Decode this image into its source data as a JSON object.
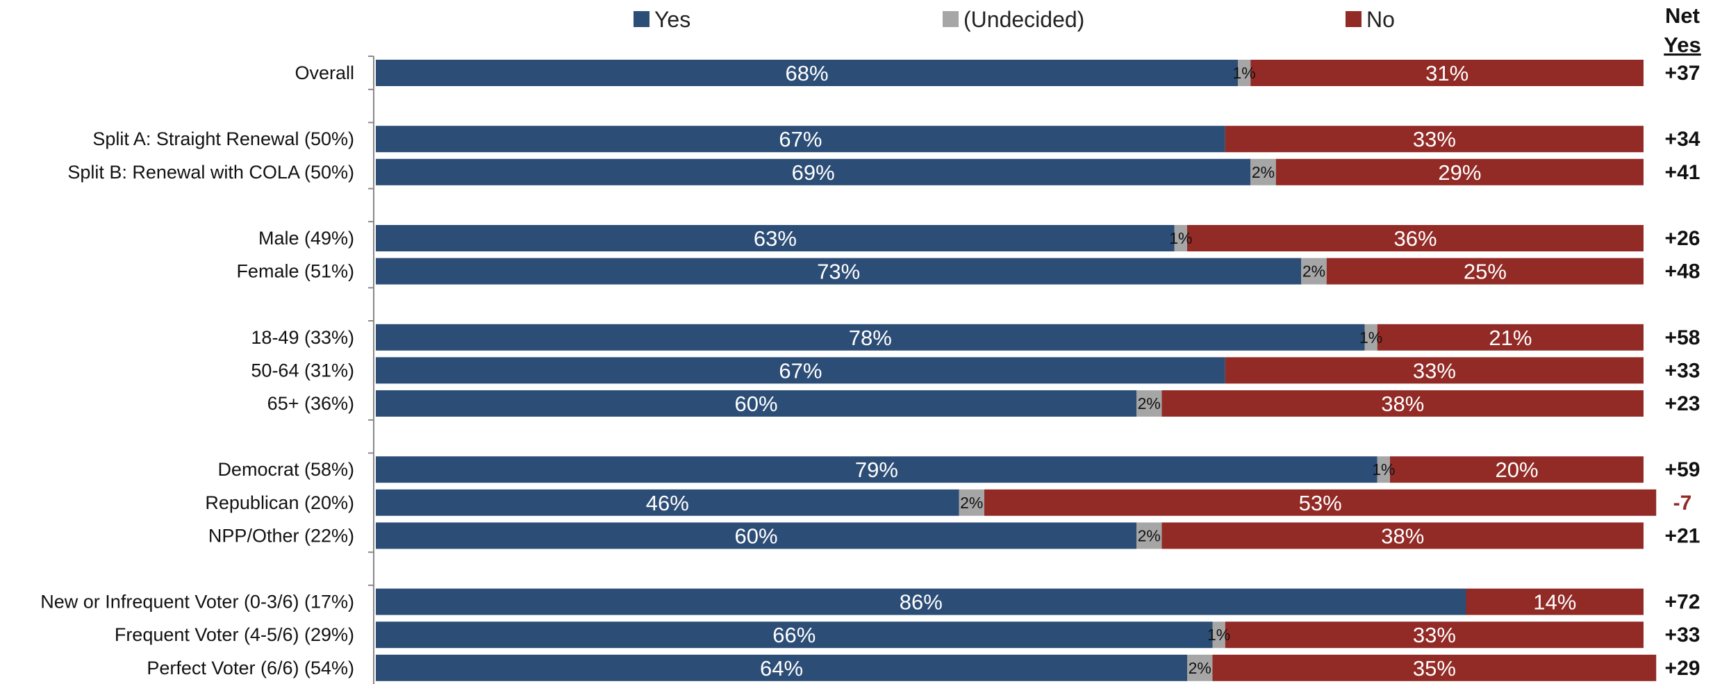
{
  "chart_data": {
    "type": "bar",
    "orientation": "horizontal",
    "stacked": true,
    "legend_position": "top",
    "xlim": [
      0,
      100
    ],
    "series": [
      {
        "name": "Yes",
        "color": "#2c4d76"
      },
      {
        "name": "(Undecided)",
        "color": "#a6a6a6"
      },
      {
        "name": "No",
        "color": "#922a26"
      }
    ],
    "net_header": [
      "Net",
      "Yes"
    ],
    "positive_net_color": "#111111",
    "negative_net_color": "#922a26",
    "groups": [
      [
        {
          "label": "Overall",
          "yes": 68,
          "undecided": 1,
          "no": 31,
          "net": "+37"
        }
      ],
      [
        {
          "label": "Split A: Straight Renewal (50%)",
          "yes": 67,
          "undecided": 0,
          "no": 33,
          "net": "+34"
        },
        {
          "label": "Split B: Renewal with COLA (50%)",
          "yes": 69,
          "undecided": 2,
          "no": 29,
          "net": "+41"
        }
      ],
      [
        {
          "label": "Male (49%)",
          "yes": 63,
          "undecided": 1,
          "no": 36,
          "net": "+26"
        },
        {
          "label": "Female (51%)",
          "yes": 73,
          "undecided": 2,
          "no": 25,
          "net": "+48"
        }
      ],
      [
        {
          "label": "18-49 (33%)",
          "yes": 78,
          "undecided": 1,
          "no": 21,
          "net": "+58"
        },
        {
          "label": "50-64 (31%)",
          "yes": 67,
          "undecided": 0,
          "no": 33,
          "net": "+33"
        },
        {
          "label": "65+ (36%)",
          "yes": 60,
          "undecided": 2,
          "no": 38,
          "net": "+23"
        }
      ],
      [
        {
          "label": "Democrat (58%)",
          "yes": 79,
          "undecided": 1,
          "no": 20,
          "net": "+59"
        },
        {
          "label": "Republican (20%)",
          "yes": 46,
          "undecided": 2,
          "no": 53,
          "net": "-7"
        },
        {
          "label": "NPP/Other (22%)",
          "yes": 60,
          "undecided": 2,
          "no": 38,
          "net": "+21"
        }
      ],
      [
        {
          "label": "New or Infrequent Voter (0-3/6) (17%)",
          "yes": 86,
          "undecided": 0,
          "no": 14,
          "net": "+72"
        },
        {
          "label": "Frequent Voter (4-5/6) (29%)",
          "yes": 66,
          "undecided": 1,
          "no": 33,
          "net": "+33"
        },
        {
          "label": "Perfect Voter (6/6) (54%)",
          "yes": 64,
          "undecided": 2,
          "no": 35,
          "net": "+29"
        }
      ]
    ]
  }
}
